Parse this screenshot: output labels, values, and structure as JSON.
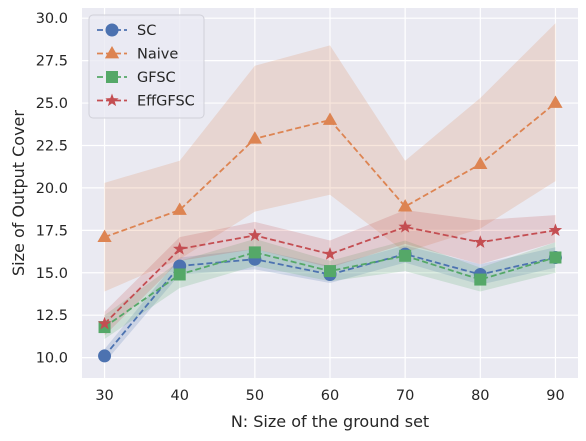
{
  "chart_data": {
    "type": "line",
    "title": "",
    "xlabel": "N: Size of the ground set",
    "ylabel": "Size of Output Cover",
    "x": [
      30,
      40,
      50,
      60,
      70,
      80,
      90
    ],
    "xlim": [
      27,
      93
    ],
    "ylim": [
      8.8,
      30.6
    ],
    "xticks": [
      30,
      40,
      50,
      60,
      70,
      80,
      90
    ],
    "yticks": [
      "10.0",
      "12.5",
      "15.0",
      "17.5",
      "20.0",
      "22.5",
      "25.0",
      "27.5",
      "30.0"
    ],
    "grid": true,
    "legend_position": "top-left",
    "background": "#eaeaf2",
    "series": [
      {
        "name": "SC",
        "color": "#4c72b0",
        "marker": "circle",
        "values": [
          10.1,
          15.4,
          15.8,
          14.9,
          16.1,
          14.9,
          15.9
        ],
        "band_lower": [
          9.7,
          14.9,
          15.2,
          14.4,
          15.6,
          14.3,
          15.3
        ],
        "band_upper": [
          10.5,
          15.9,
          16.4,
          15.4,
          16.6,
          15.5,
          16.5
        ]
      },
      {
        "name": "Naive",
        "color": "#dd8452",
        "marker": "triangle",
        "values": [
          17.1,
          18.7,
          22.9,
          24.0,
          18.9,
          21.4,
          25.0
        ],
        "band_lower": [
          13.9,
          15.8,
          18.6,
          19.6,
          16.2,
          17.6,
          20.4
        ],
        "band_upper": [
          20.3,
          21.6,
          27.2,
          28.4,
          21.6,
          25.3,
          29.7
        ]
      },
      {
        "name": "GFSC",
        "color": "#55a868",
        "marker": "square",
        "values": [
          11.8,
          14.9,
          16.2,
          15.1,
          16.0,
          14.6,
          15.9
        ],
        "band_lower": [
          11.1,
          14.1,
          15.4,
          14.5,
          15.1,
          13.9,
          15.0
        ],
        "band_upper": [
          12.5,
          15.7,
          17.0,
          15.7,
          16.9,
          15.3,
          16.8
        ]
      },
      {
        "name": "EffGFSC",
        "color": "#c44e52",
        "marker": "star",
        "values": [
          12.0,
          16.4,
          17.2,
          16.1,
          17.7,
          16.8,
          17.5
        ],
        "band_lower": [
          11.3,
          15.7,
          16.4,
          15.3,
          16.7,
          15.5,
          16.8
        ],
        "band_upper": [
          12.7,
          17.1,
          18.0,
          16.9,
          18.7,
          18.1,
          18.4
        ]
      }
    ]
  }
}
